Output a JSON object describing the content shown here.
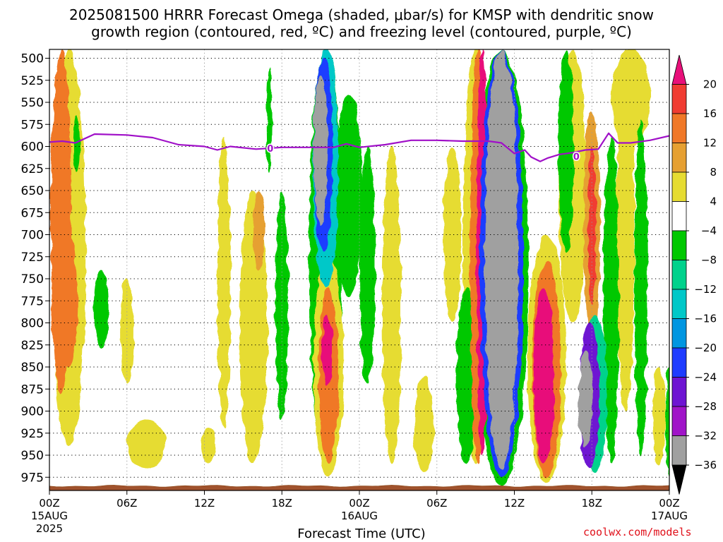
{
  "title_line1": "2025081500 HRRR Forecast Omega (shaded, μbar/s) for KMSP with dendritic snow",
  "title_line2": "growth region (contoured, red, ºC) and freezing level (contoured, purple, ºC)",
  "credit": "coolwx.com/models",
  "chart_data": {
    "type": "heatmap",
    "title": "2025081500 HRRR Forecast Omega (shaded, μbar/s) for KMSP with dendritic snow growth region (contoured, red, ºC) and freezing level (contoured, purple, ºC)",
    "xlabel": "Forecast Time (UTC)",
    "ylabel": "",
    "x_range_hours": [
      0,
      48
    ],
    "y_range_hpa": [
      490,
      990
    ],
    "y_inverted": true,
    "grid": true,
    "x_ticks": [
      {
        "hour": 0,
        "label": "00Z",
        "date": "15AUG",
        "year": "2025"
      },
      {
        "hour": 6,
        "label": "06Z"
      },
      {
        "hour": 12,
        "label": "12Z"
      },
      {
        "hour": 18,
        "label": "18Z"
      },
      {
        "hour": 24,
        "label": "00Z",
        "date": "16AUG"
      },
      {
        "hour": 30,
        "label": "06Z"
      },
      {
        "hour": 36,
        "label": "12Z"
      },
      {
        "hour": 42,
        "label": "18Z"
      },
      {
        "hour": 48,
        "label": "00Z",
        "date": "17AUG"
      }
    ],
    "y_ticks": [
      500,
      525,
      550,
      575,
      600,
      625,
      650,
      675,
      700,
      725,
      750,
      775,
      800,
      825,
      850,
      875,
      900,
      925,
      950,
      975
    ],
    "colorbar": {
      "labels": [
        "20",
        "16",
        "12",
        "8",
        "4",
        "−4",
        "−8",
        "−12",
        "−16",
        "−20",
        "−24",
        "−28",
        "−32",
        "−36"
      ],
      "bands": [
        {
          "min": 20,
          "max": null,
          "color": "#e8107a"
        },
        {
          "min": 16,
          "max": 20,
          "color": "#f03c32"
        },
        {
          "min": 12,
          "max": 16,
          "color": "#f07828"
        },
        {
          "min": 8,
          "max": 12,
          "color": "#e6a032"
        },
        {
          "min": 4,
          "max": 8,
          "color": "#e6dc32"
        },
        {
          "min": -4,
          "max": 4,
          "color": "#ffffff"
        },
        {
          "min": -8,
          "max": -4,
          "color": "#00c800"
        },
        {
          "min": -12,
          "max": -8,
          "color": "#00d28c"
        },
        {
          "min": -16,
          "max": -12,
          "color": "#00c8c8"
        },
        {
          "min": -20,
          "max": -16,
          "color": "#0096e1"
        },
        {
          "min": -24,
          "max": -20,
          "color": "#1e3cff"
        },
        {
          "min": -28,
          "max": -24,
          "color": "#6e14d2"
        },
        {
          "min": -32,
          "max": -28,
          "color": "#a014c8"
        },
        {
          "min": -36,
          "max": -32,
          "color": "#a0a0a0"
        },
        {
          "min": null,
          "max": -36,
          "color": "#000000"
        }
      ]
    },
    "omega_features": [
      {
        "hour": 0.9,
        "p_top": 490,
        "p_bot": 880,
        "width_h": 1.6,
        "value": 12
      },
      {
        "hour": 1.5,
        "p_top": 490,
        "p_bot": 940,
        "width_h": 2.6,
        "value": 4
      },
      {
        "hour": 1.5,
        "p_top": 700,
        "p_bot": 850,
        "width_h": 1.3,
        "value": 13
      },
      {
        "hour": 2.1,
        "p_top": 565,
        "p_bot": 630,
        "width_h": 0.5,
        "value": -6
      },
      {
        "hour": 4.0,
        "p_top": 740,
        "p_bot": 830,
        "width_h": 1.2,
        "value": -6
      },
      {
        "hour": 6.0,
        "p_top": 750,
        "p_bot": 870,
        "width_h": 1.0,
        "value": 5
      },
      {
        "hour": 7.5,
        "p_top": 910,
        "p_bot": 965,
        "width_h": 3.0,
        "value": 5
      },
      {
        "hour": 12.3,
        "p_top": 920,
        "p_bot": 960,
        "width_h": 1.2,
        "value": 5
      },
      {
        "hour": 13.5,
        "p_top": 590,
        "p_bot": 920,
        "width_h": 1.0,
        "value": 5
      },
      {
        "hour": 15.8,
        "p_top": 650,
        "p_bot": 960,
        "width_h": 2.2,
        "value": 5
      },
      {
        "hour": 16.2,
        "p_top": 650,
        "p_bot": 740,
        "width_h": 0.9,
        "value": 9
      },
      {
        "hour": 17.0,
        "p_top": 510,
        "p_bot": 630,
        "width_h": 0.4,
        "value": -6
      },
      {
        "hour": 18.0,
        "p_top": 650,
        "p_bot": 910,
        "width_h": 1.0,
        "value": -6
      },
      {
        "hour": 21.4,
        "p_top": 490,
        "p_bot": 960,
        "width_h": 2.6,
        "value": -6
      },
      {
        "hour": 21.4,
        "p_top": 490,
        "p_bot": 760,
        "width_h": 2.0,
        "value": -14
      },
      {
        "hour": 21.2,
        "p_top": 500,
        "p_bot": 720,
        "width_h": 1.5,
        "value": -22
      },
      {
        "hour": 21.0,
        "p_top": 520,
        "p_bot": 690,
        "width_h": 1.1,
        "value": -36
      },
      {
        "hour": 21.6,
        "p_top": 720,
        "p_bot": 975,
        "width_h": 2.3,
        "value": 6
      },
      {
        "hour": 21.6,
        "p_top": 760,
        "p_bot": 960,
        "width_h": 1.5,
        "value": 14
      },
      {
        "hour": 21.5,
        "p_top": 790,
        "p_bot": 870,
        "width_h": 0.8,
        "value": 22
      },
      {
        "hour": 23.2,
        "p_top": 540,
        "p_bot": 770,
        "width_h": 2.0,
        "value": -6
      },
      {
        "hour": 24.6,
        "p_top": 600,
        "p_bot": 870,
        "width_h": 1.2,
        "value": -6
      },
      {
        "hour": 26.5,
        "p_top": 600,
        "p_bot": 960,
        "width_h": 1.5,
        "value": 5
      },
      {
        "hour": 29.0,
        "p_top": 860,
        "p_bot": 970,
        "width_h": 1.5,
        "value": 5
      },
      {
        "hour": 31.2,
        "p_top": 600,
        "p_bot": 800,
        "width_h": 1.4,
        "value": 5
      },
      {
        "hour": 32.3,
        "p_top": 760,
        "p_bot": 960,
        "width_h": 1.6,
        "value": -6
      },
      {
        "hour": 33.0,
        "p_top": 490,
        "p_bot": 960,
        "width_h": 2.0,
        "value": 5
      },
      {
        "hour": 33.2,
        "p_top": 490,
        "p_bot": 960,
        "width_h": 1.3,
        "value": 12
      },
      {
        "hour": 33.5,
        "p_top": 490,
        "p_bot": 950,
        "width_h": 0.9,
        "value": 22
      },
      {
        "hour": 35.0,
        "p_top": 490,
        "p_bot": 985,
        "width_h": 4.2,
        "value": -6
      },
      {
        "hour": 35.0,
        "p_top": 490,
        "p_bot": 975,
        "width_h": 3.4,
        "value": -22
      },
      {
        "hour": 35.0,
        "p_top": 490,
        "p_bot": 965,
        "width_h": 2.6,
        "value": -36
      },
      {
        "hour": 38.5,
        "p_top": 700,
        "p_bot": 980,
        "width_h": 3.0,
        "value": 6
      },
      {
        "hour": 38.5,
        "p_top": 730,
        "p_bot": 975,
        "width_h": 2.2,
        "value": 14
      },
      {
        "hour": 38.3,
        "p_top": 760,
        "p_bot": 960,
        "width_h": 1.6,
        "value": 22
      },
      {
        "hour": 40.5,
        "p_top": 490,
        "p_bot": 800,
        "width_h": 2.2,
        "value": 5
      },
      {
        "hour": 40.0,
        "p_top": 490,
        "p_bot": 720,
        "width_h": 1.2,
        "value": -6
      },
      {
        "hour": 42.0,
        "p_top": 560,
        "p_bot": 820,
        "width_h": 1.3,
        "value": 10
      },
      {
        "hour": 42.0,
        "p_top": 600,
        "p_bot": 780,
        "width_h": 0.6,
        "value": 16
      },
      {
        "hour": 42.2,
        "p_top": 790,
        "p_bot": 970,
        "width_h": 2.0,
        "value": -12
      },
      {
        "hour": 41.8,
        "p_top": 800,
        "p_bot": 965,
        "width_h": 1.6,
        "value": -26
      },
      {
        "hour": 41.5,
        "p_top": 830,
        "p_bot": 940,
        "width_h": 1.1,
        "value": -36
      },
      {
        "hour": 43.5,
        "p_top": 590,
        "p_bot": 960,
        "width_h": 1.2,
        "value": -6
      },
      {
        "hour": 44.6,
        "p_top": 490,
        "p_bot": 900,
        "width_h": 1.4,
        "value": 5
      },
      {
        "hour": 45.0,
        "p_top": 490,
        "p_bot": 600,
        "width_h": 3.0,
        "value": 4
      },
      {
        "hour": 45.8,
        "p_top": 570,
        "p_bot": 950,
        "width_h": 1.0,
        "value": -6
      },
      {
        "hour": 47.2,
        "p_top": 850,
        "p_bot": 960,
        "width_h": 1.0,
        "value": 5
      },
      {
        "hour": 48.0,
        "p_top": 850,
        "p_bot": 975,
        "width_h": 0.6,
        "value": -6
      }
    ],
    "freezing_level": {
      "label": "0",
      "label_points": [
        {
          "hour": 17.1,
          "p": 602
        },
        {
          "hour": 40.8,
          "p": 611
        }
      ],
      "points": [
        [
          0,
          595
        ],
        [
          1,
          594
        ],
        [
          2,
          596
        ],
        [
          3.5,
          586
        ],
        [
          6,
          587
        ],
        [
          8,
          590
        ],
        [
          10,
          598
        ],
        [
          12,
          600
        ],
        [
          13,
          604
        ],
        [
          14,
          600
        ],
        [
          16,
          603
        ],
        [
          18,
          601
        ],
        [
          20,
          601
        ],
        [
          22,
          601
        ],
        [
          23,
          597
        ],
        [
          24,
          601
        ],
        [
          26,
          598
        ],
        [
          28,
          593
        ],
        [
          30,
          593
        ],
        [
          32,
          594
        ],
        [
          34,
          594
        ],
        [
          35,
          596
        ],
        [
          36,
          608
        ],
        [
          36.8,
          604
        ],
        [
          37.3,
          612
        ],
        [
          38,
          617
        ],
        [
          38.6,
          613
        ],
        [
          39.5,
          609
        ],
        [
          40.5,
          607
        ],
        [
          41.5,
          604
        ],
        [
          42.5,
          603
        ],
        [
          43.3,
          585
        ],
        [
          44,
          596
        ],
        [
          45,
          596
        ],
        [
          46.5,
          593
        ],
        [
          48,
          588
        ]
      ]
    },
    "terrain_surface_p": 985
  }
}
